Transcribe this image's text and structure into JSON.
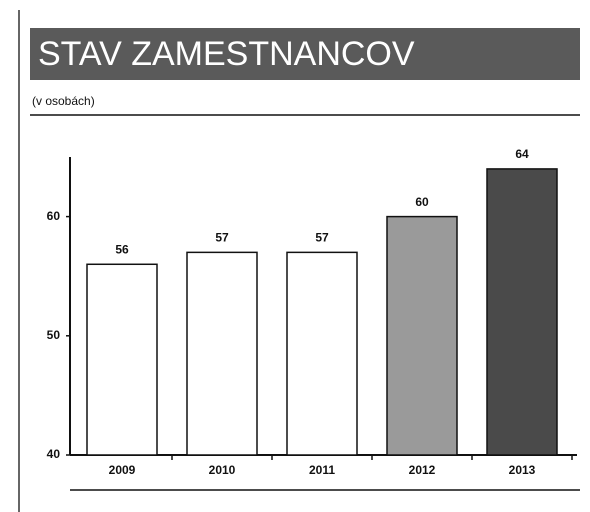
{
  "chart_data": {
    "type": "bar",
    "title": "STAV ZAMESTNANCOV",
    "subtitle": "(v osobách)",
    "categories": [
      "2009",
      "2010",
      "2011",
      "2012",
      "2013"
    ],
    "values": [
      56,
      57,
      57,
      60,
      64
    ],
    "colors": [
      "#ffffff",
      "#ffffff",
      "#ffffff",
      "#9a9a9a",
      "#4a4a4a"
    ],
    "ylim": [
      40,
      65
    ],
    "yticks": [
      40,
      50,
      60
    ]
  }
}
